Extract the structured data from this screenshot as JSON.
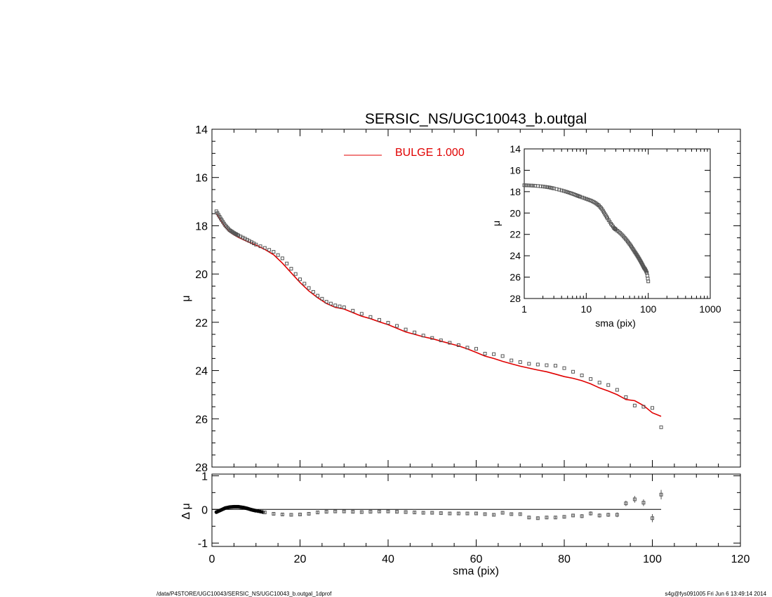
{
  "figure": {
    "footer_left": "/data/P4STORE/UGC10043/SERSIC_NS/UGC10043_b.outgal_1dprof",
    "footer_right": "s4g@fys091005  Fri Jun  6 13:49:14 2014"
  },
  "colors": {
    "model": "#e00000",
    "data": "#000000",
    "points": "#555555"
  },
  "chart_data": [
    {
      "id": "main",
      "type": "scatter",
      "title": "SERSIC_NS/UGC10043_b.outgal",
      "ylabel": "μ",
      "xlabel": "",
      "xlim": [
        0,
        120
      ],
      "ylim": [
        28,
        14
      ],
      "y_inverted": true,
      "yticks": [
        14,
        16,
        18,
        20,
        22,
        24,
        26,
        28
      ],
      "legend": {
        "position": "top-center",
        "entries": [
          {
            "label": "BULGE  1.000",
            "color": "#e00000"
          }
        ]
      },
      "series": [
        {
          "name": "BULGE  1.000",
          "kind": "line",
          "x": [
            1,
            2,
            3,
            4,
            5,
            6,
            8,
            10,
            12,
            14,
            16,
            18,
            20,
            22,
            24,
            26,
            28,
            30,
            32,
            34,
            36,
            38,
            40,
            42,
            44,
            46,
            48,
            50,
            52,
            54,
            56,
            58,
            60,
            62,
            64,
            66,
            68,
            70,
            72,
            74,
            76,
            78,
            80,
            82,
            84,
            86,
            88,
            90,
            92,
            94,
            96,
            98,
            100,
            102
          ],
          "y": [
            17.5,
            17.8,
            18.05,
            18.25,
            18.38,
            18.48,
            18.65,
            18.8,
            18.98,
            19.2,
            19.55,
            19.95,
            20.35,
            20.7,
            20.98,
            21.22,
            21.38,
            21.45,
            21.6,
            21.75,
            21.85,
            21.98,
            22.1,
            22.25,
            22.4,
            22.5,
            22.6,
            22.68,
            22.78,
            22.88,
            22.98,
            23.1,
            23.25,
            23.4,
            23.5,
            23.62,
            23.72,
            23.82,
            23.9,
            23.98,
            24.05,
            24.15,
            24.25,
            24.32,
            24.42,
            24.55,
            24.72,
            24.85,
            25.0,
            25.2,
            25.25,
            25.45,
            25.75,
            25.9
          ]
        },
        {
          "name": "",
          "kind": "points",
          "x": [
            1,
            2,
            3,
            4,
            5,
            6,
            8,
            10,
            12,
            14,
            16,
            18,
            20,
            22,
            24,
            26,
            28,
            30,
            32,
            34,
            36,
            38,
            40,
            42,
            44,
            46,
            48,
            50,
            52,
            54,
            56,
            58,
            60,
            62,
            64,
            66,
            68,
            70,
            72,
            74,
            76,
            78,
            80,
            82,
            84,
            86,
            88,
            90,
            92,
            94,
            96,
            98,
            100,
            102
          ],
          "y": [
            17.4,
            17.7,
            17.98,
            18.18,
            18.3,
            18.4,
            18.58,
            18.78,
            18.92,
            19.08,
            19.35,
            19.78,
            20.22,
            20.58,
            20.9,
            21.15,
            21.3,
            21.38,
            21.52,
            21.65,
            21.78,
            21.9,
            22.02,
            22.15,
            22.3,
            22.42,
            22.55,
            22.65,
            22.75,
            22.85,
            22.95,
            23.05,
            23.1,
            23.3,
            23.32,
            23.4,
            23.58,
            23.65,
            23.72,
            23.75,
            23.78,
            23.8,
            23.9,
            24.05,
            24.2,
            24.35,
            24.5,
            24.6,
            24.8,
            25.1,
            25.45,
            25.5,
            25.55,
            26.35
          ]
        }
      ]
    },
    {
      "id": "residual",
      "type": "scatter",
      "title": "",
      "xlabel": "sma (pix)",
      "ylabel": "Δ μ",
      "xlim": [
        0,
        120
      ],
      "ylim": [
        -1.1,
        1.05
      ],
      "xticks": [
        0,
        20,
        40,
        60,
        80,
        100,
        120
      ],
      "yticks": [
        -1,
        0,
        1
      ],
      "series": [
        {
          "name": "",
          "kind": "points",
          "x": [
            1,
            2,
            3,
            4,
            5,
            6,
            7,
            8,
            9,
            10,
            12,
            14,
            16,
            18,
            20,
            22,
            24,
            26,
            28,
            30,
            32,
            34,
            36,
            38,
            40,
            42,
            44,
            46,
            48,
            50,
            52,
            54,
            56,
            58,
            60,
            62,
            64,
            66,
            68,
            70,
            72,
            74,
            76,
            78,
            80,
            82,
            84,
            86,
            88,
            90,
            92,
            94,
            96,
            98,
            100,
            102
          ],
          "y": [
            -0.08,
            -0.02,
            0.04,
            0.07,
            0.08,
            0.08,
            0.06,
            0.03,
            -0.01,
            -0.04,
            -0.09,
            -0.13,
            -0.15,
            -0.16,
            -0.15,
            -0.13,
            -0.09,
            -0.07,
            -0.06,
            -0.06,
            -0.07,
            -0.08,
            -0.07,
            -0.06,
            -0.06,
            -0.07,
            -0.08,
            -0.09,
            -0.1,
            -0.1,
            -0.11,
            -0.12,
            -0.12,
            -0.12,
            -0.12,
            -0.14,
            -0.16,
            -0.1,
            -0.14,
            -0.14,
            -0.24,
            -0.26,
            -0.24,
            -0.24,
            -0.22,
            -0.18,
            -0.2,
            -0.12,
            -0.18,
            -0.16,
            -0.16,
            0.18,
            0.3,
            0.2,
            -0.26,
            0.44
          ],
          "error": [
            0.02,
            0.02,
            0.02,
            0.02,
            0.02,
            0.02,
            0.02,
            0.02,
            0.02,
            0.02,
            0.03,
            0.03,
            0.03,
            0.03,
            0.03,
            0.03,
            0.03,
            0.03,
            0.03,
            0.03,
            0.03,
            0.03,
            0.03,
            0.03,
            0.03,
            0.03,
            0.03,
            0.03,
            0.03,
            0.04,
            0.04,
            0.04,
            0.04,
            0.04,
            0.04,
            0.04,
            0.04,
            0.05,
            0.05,
            0.05,
            0.05,
            0.05,
            0.05,
            0.05,
            0.05,
            0.05,
            0.06,
            0.06,
            0.06,
            0.06,
            0.07,
            0.08,
            0.1,
            0.1,
            0.12,
            0.14
          ]
        }
      ]
    },
    {
      "id": "inset",
      "type": "scatter",
      "title": "",
      "xlabel": "sma (pix)",
      "ylabel": "μ",
      "x_scale": "log",
      "xlim": [
        1,
        1000
      ],
      "ylim": [
        28,
        14
      ],
      "y_inverted": true,
      "xticks": [
        1,
        10,
        100,
        1000
      ],
      "yticks": [
        14,
        16,
        18,
        20,
        22,
        24,
        26,
        28
      ],
      "series": [
        {
          "name": "",
          "kind": "points",
          "x": [
            1.0,
            1.2,
            1.5,
            2,
            2.5,
            3,
            4,
            5,
            6,
            7,
            8,
            10,
            12,
            14,
            16,
            18,
            20,
            22,
            25,
            28,
            30,
            35,
            40,
            45,
            50,
            55,
            60,
            65,
            70,
            75,
            80,
            85,
            90,
            95,
            100
          ],
          "y": [
            17.4,
            17.42,
            17.45,
            17.52,
            17.6,
            17.7,
            17.88,
            18.05,
            18.2,
            18.35,
            18.48,
            18.68,
            18.85,
            19.05,
            19.3,
            19.65,
            20.1,
            20.5,
            21.0,
            21.4,
            21.55,
            21.85,
            22.2,
            22.55,
            22.9,
            23.25,
            23.6,
            23.9,
            24.2,
            24.5,
            24.8,
            25.1,
            25.3,
            25.6,
            26.4
          ]
        }
      ]
    }
  ]
}
